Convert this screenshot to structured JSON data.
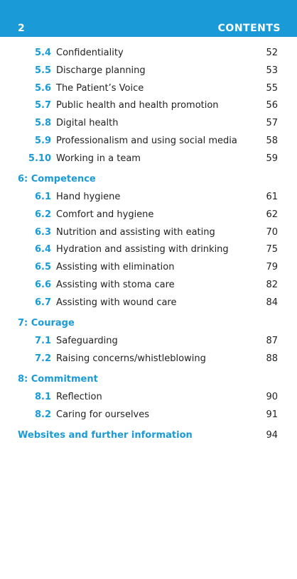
{
  "header": {
    "page_number": "2",
    "title": "CONTENTS"
  },
  "continued": [
    {
      "number": "5.4",
      "title": "Confidentiality",
      "page": 52
    },
    {
      "number": "5.5",
      "title": "Discharge planning",
      "page": 53
    },
    {
      "number": "5.6",
      "title": "The Patient’s Voice",
      "page": 55
    },
    {
      "number": "5.7",
      "title": "Public health and health promotion",
      "page": 56
    },
    {
      "number": "5.8",
      "title": "Digital health",
      "page": 57
    },
    {
      "number": "5.9",
      "title": "Professionalism and using social media",
      "page": 58
    },
    {
      "number": "5.10",
      "title": "Working in a team",
      "page": 59
    }
  ],
  "sections": [
    {
      "heading": "6: Competence",
      "items": [
        {
          "number": "6.1",
          "title": "Hand hygiene",
          "page": 61
        },
        {
          "number": "6.2",
          "title": "Comfort and hygiene",
          "page": 62
        },
        {
          "number": "6.3",
          "title": "Nutrition and assisting with eating",
          "page": 70
        },
        {
          "number": "6.4",
          "title": "Hydration and assisting with drinking",
          "page": 75
        },
        {
          "number": "6.5",
          "title": "Assisting with elimination",
          "page": 79
        },
        {
          "number": "6.6",
          "title": "Assisting with stoma care",
          "page": 82
        },
        {
          "number": "6.7",
          "title": "Assisting with wound care",
          "page": 84
        }
      ]
    },
    {
      "heading": "7: Courage",
      "items": [
        {
          "number": "7.1",
          "title": "Safeguarding",
          "page": 87
        },
        {
          "number": "7.2",
          "title": "Raising concerns/whistleblowing",
          "page": 88
        }
      ]
    },
    {
      "heading": "8: Commitment",
      "items": [
        {
          "number": "8.1",
          "title": "Reflection",
          "page": 90
        },
        {
          "number": "8.2",
          "title": "Caring for ourselves",
          "page": 91
        }
      ]
    }
  ],
  "closing": {
    "title": "Websites and further information",
    "page": 94
  }
}
